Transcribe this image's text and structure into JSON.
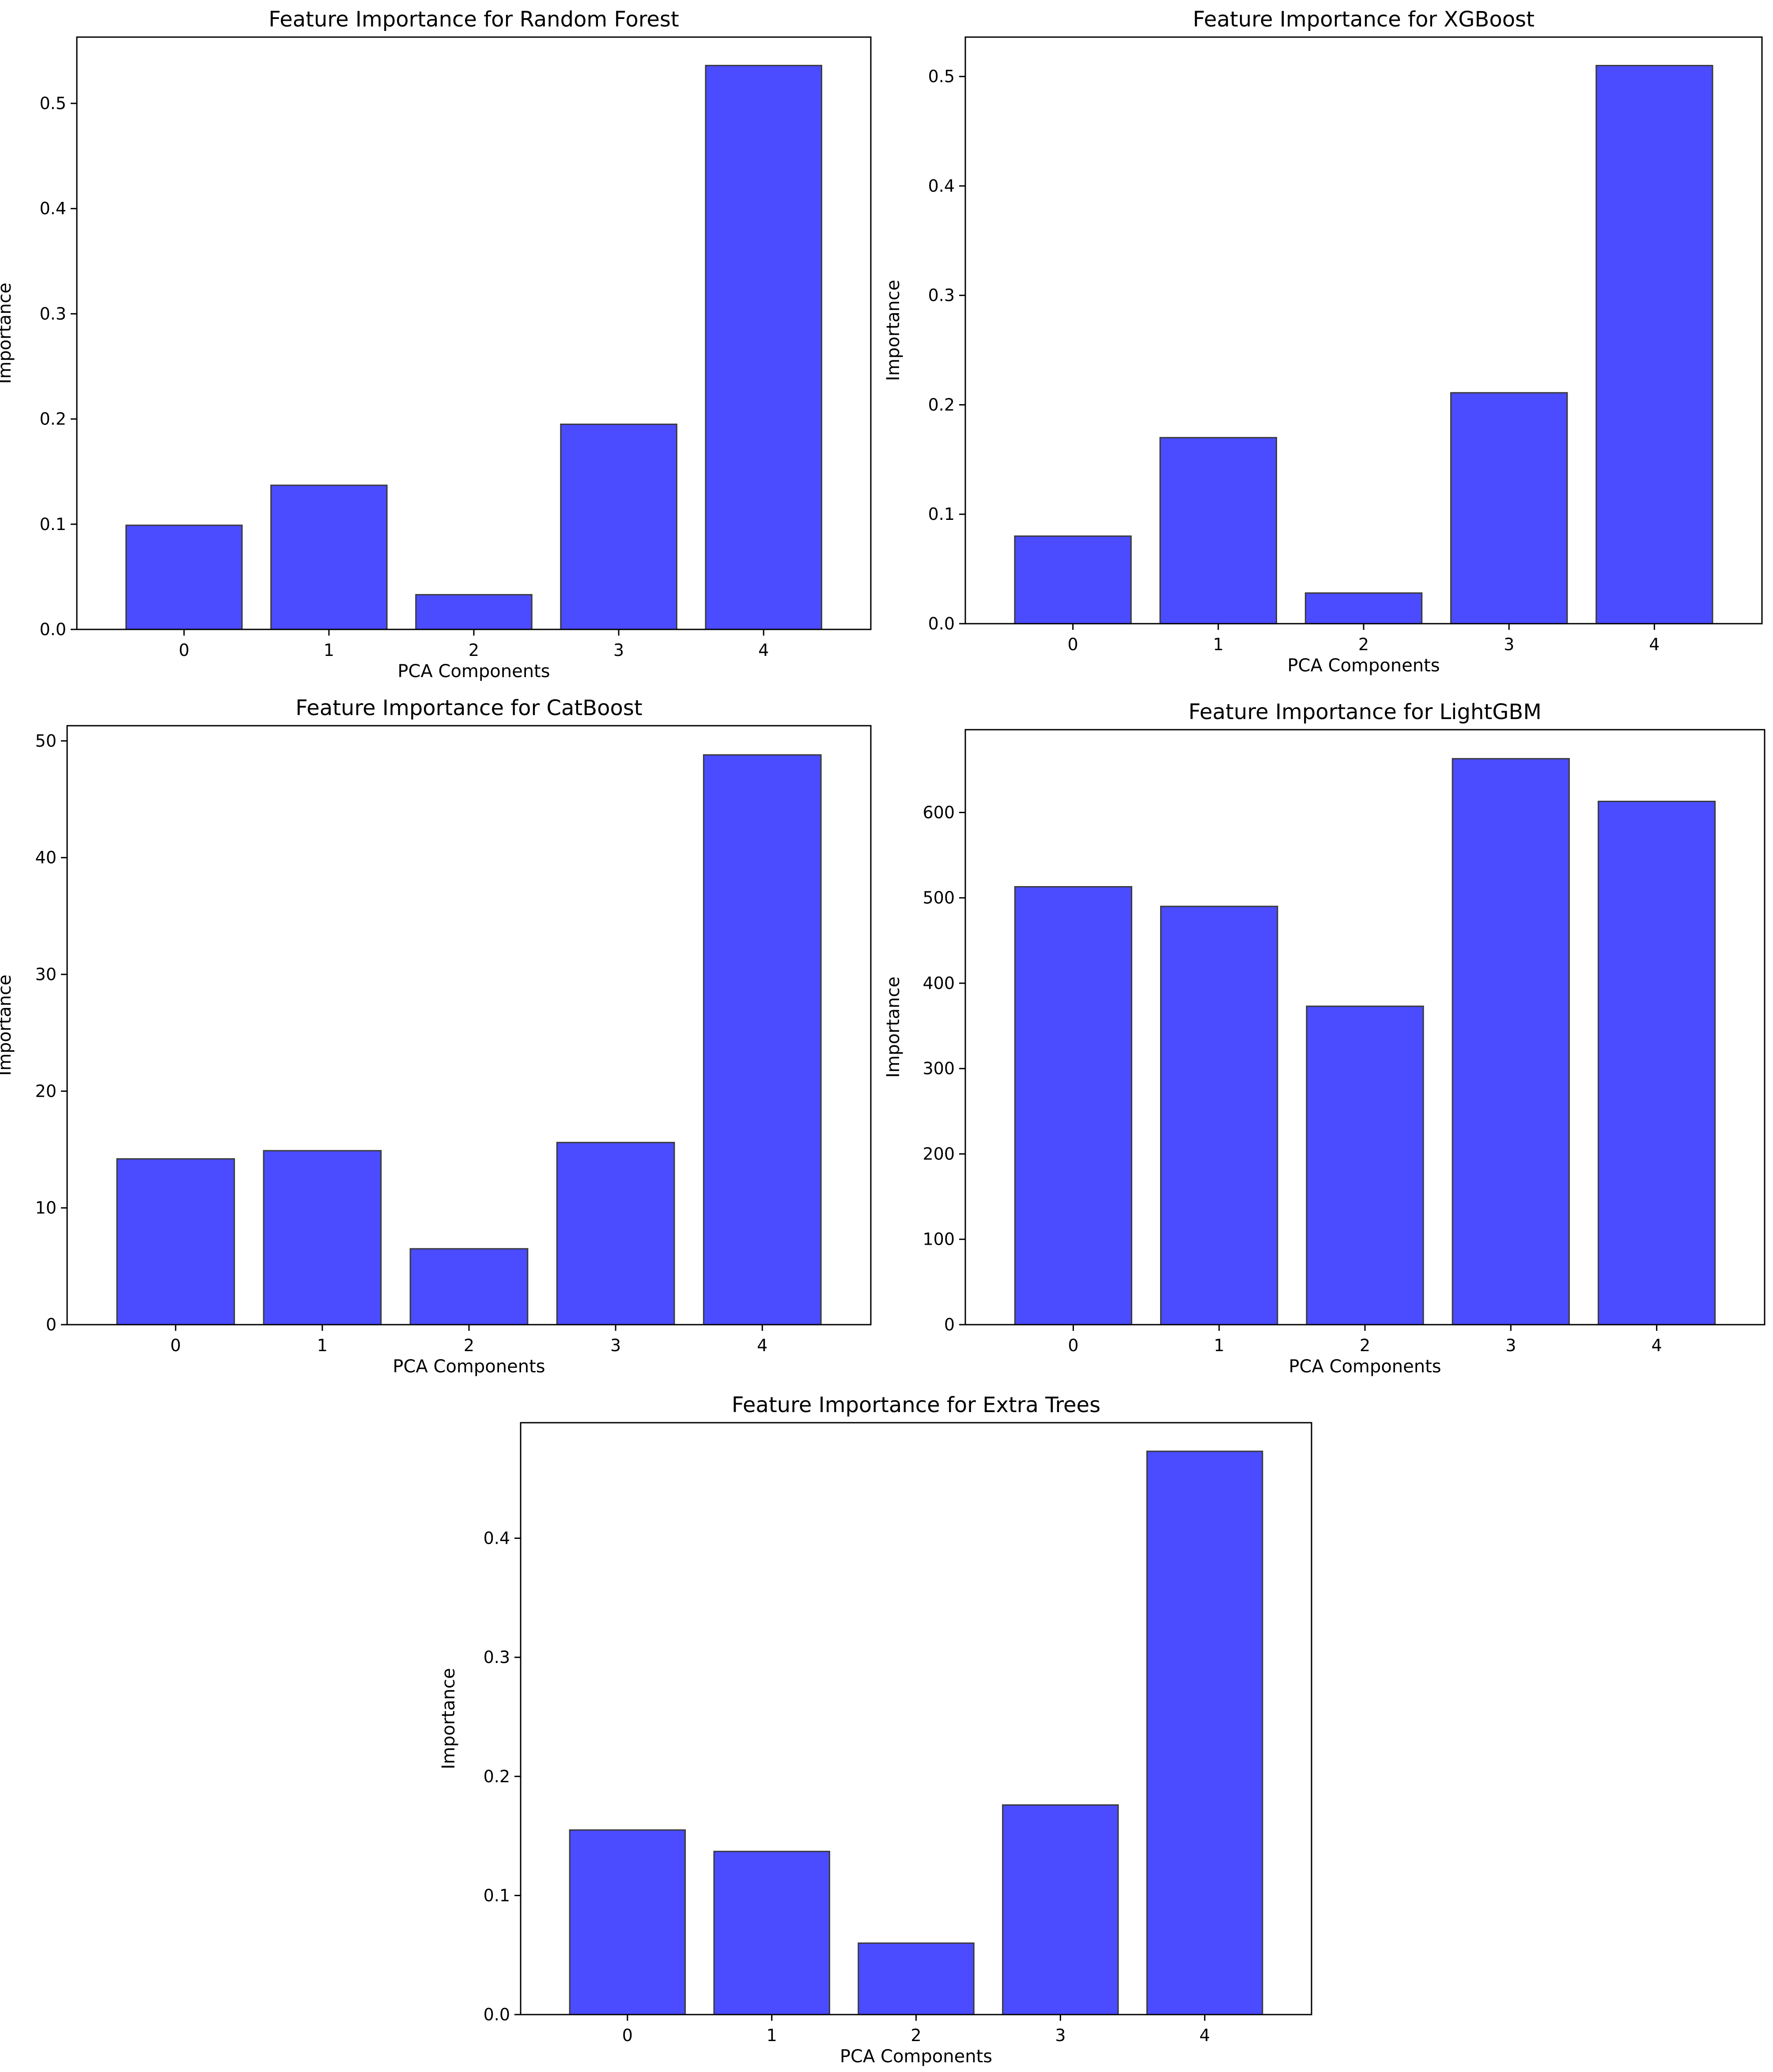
{
  "figure": {
    "background": "#ffffff"
  },
  "style": {
    "bar_color": "#4b4bff",
    "bar_edge": "#3a3a3a",
    "axis_color": "#000000"
  },
  "chart_data": [
    {
      "id": "random-forest",
      "type": "bar",
      "title": "Feature Importance for Random Forest",
      "xlabel": "PCA Components",
      "ylabel": "Importance",
      "categories": [
        "0",
        "1",
        "2",
        "3",
        "4"
      ],
      "values": [
        0.099,
        0.137,
        0.033,
        0.195,
        0.536
      ],
      "ylim": [
        0,
        0.563
      ],
      "yticks": [
        0.0,
        0.1,
        0.2,
        0.3,
        0.4,
        0.5
      ],
      "ytick_labels": [
        "0.0",
        "0.1",
        "0.2",
        "0.3",
        "0.4",
        "0.5"
      ],
      "grid": false
    },
    {
      "id": "xgboost",
      "type": "bar",
      "title": "Feature Importance for XGBoost",
      "xlabel": "PCA Components",
      "ylabel": "Importance",
      "categories": [
        "0",
        "1",
        "2",
        "3",
        "4"
      ],
      "values": [
        0.08,
        0.17,
        0.028,
        0.211,
        0.51
      ],
      "ylim": [
        0,
        0.536
      ],
      "yticks": [
        0.0,
        0.1,
        0.2,
        0.3,
        0.4,
        0.5
      ],
      "ytick_labels": [
        "0.0",
        "0.1",
        "0.2",
        "0.3",
        "0.4",
        "0.5"
      ],
      "grid": false
    },
    {
      "id": "catboost",
      "type": "bar",
      "title": "Feature Importance for CatBoost",
      "xlabel": "PCA Components",
      "ylabel": "Importance",
      "categories": [
        "0",
        "1",
        "2",
        "3",
        "4"
      ],
      "values": [
        14.2,
        14.9,
        6.5,
        15.6,
        48.8
      ],
      "ylim": [
        0,
        51.3
      ],
      "yticks": [
        0,
        10,
        20,
        30,
        40,
        50
      ],
      "ytick_labels": [
        "0",
        "10",
        "20",
        "30",
        "40",
        "50"
      ],
      "grid": false
    },
    {
      "id": "lightgbm",
      "type": "bar",
      "title": "Feature Importance for LightGBM",
      "xlabel": "PCA Components",
      "ylabel": "Importance",
      "categories": [
        "0",
        "1",
        "2",
        "3",
        "4"
      ],
      "values": [
        513,
        490,
        373,
        663,
        613
      ],
      "ylim": [
        0,
        697
      ],
      "yticks": [
        0,
        100,
        200,
        300,
        400,
        500,
        600
      ],
      "ytick_labels": [
        "0",
        "100",
        "200",
        "300",
        "400",
        "500",
        "600"
      ],
      "grid": false
    },
    {
      "id": "extra-trees",
      "type": "bar",
      "title": "Feature Importance for Extra Trees",
      "xlabel": "PCA Components",
      "ylabel": "Importance",
      "categories": [
        "0",
        "1",
        "2",
        "3",
        "4"
      ],
      "values": [
        0.155,
        0.137,
        0.06,
        0.176,
        0.473
      ],
      "ylim": [
        0,
        0.497
      ],
      "yticks": [
        0.0,
        0.1,
        0.2,
        0.3,
        0.4
      ],
      "ytick_labels": [
        "0.0",
        "0.1",
        "0.2",
        "0.3",
        "0.4"
      ],
      "grid": false
    }
  ]
}
